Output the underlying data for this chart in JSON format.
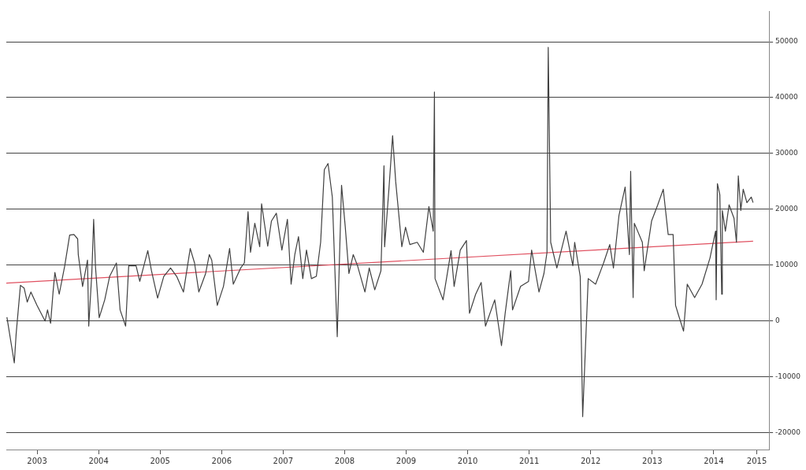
{
  "chart_data": {
    "type": "line",
    "xlim": [
      2003.0,
      2015.4
    ],
    "ylim": [
      -23000,
      55500
    ],
    "xticks": [
      {
        "value": 2003.5,
        "label": "2003"
      },
      {
        "value": 2004.5,
        "label": "2004"
      },
      {
        "value": 2005.5,
        "label": "2005"
      },
      {
        "value": 2006.5,
        "label": "2006"
      },
      {
        "value": 2007.5,
        "label": "2007"
      },
      {
        "value": 2008.5,
        "label": "2008"
      },
      {
        "value": 2009.5,
        "label": "2009"
      },
      {
        "value": 2010.5,
        "label": "2010"
      },
      {
        "value": 2011.5,
        "label": "2011"
      },
      {
        "value": 2012.5,
        "label": "2012"
      },
      {
        "value": 2013.5,
        "label": "2013"
      },
      {
        "value": 2014.5,
        "label": "2014"
      },
      {
        "value": 2015.2,
        "label": "2015"
      }
    ],
    "yticks": [
      -20000,
      -10000,
      0,
      10000,
      20000,
      30000,
      40000,
      50000
    ],
    "grid": "y",
    "legend": false,
    "marker": "none",
    "line_style": "solid",
    "series": [
      {
        "color": "#404040",
        "x": [
          2003.01,
          2003.13,
          2003.16,
          2003.23,
          2003.29,
          2003.34,
          2003.4,
          2003.5,
          2003.63,
          2003.67,
          2003.72,
          2003.76,
          2003.79,
          2003.86,
          2003.95,
          2004.03,
          2004.1,
          2004.16,
          2004.17,
          2004.24,
          2004.32,
          2004.34,
          2004.39,
          2004.42,
          2004.45,
          2004.51,
          2004.6,
          2004.68,
          2004.79,
          2004.85,
          2004.94,
          2004.99,
          2005.11,
          2005.17,
          2005.3,
          2005.36,
          2005.46,
          2005.56,
          2005.67,
          2005.77,
          2005.88,
          2005.99,
          2006.06,
          2006.13,
          2006.24,
          2006.3,
          2006.34,
          2006.43,
          2006.53,
          2006.63,
          2006.69,
          2006.81,
          2006.87,
          2006.93,
          2006.97,
          2007.04,
          2007.12,
          2007.15,
          2007.25,
          2007.31,
          2007.39,
          2007.48,
          2007.57,
          2007.63,
          2007.69,
          2007.75,
          2007.82,
          2007.88,
          2007.96,
          2008.04,
          2008.11,
          2008.17,
          2008.23,
          2008.3,
          2008.38,
          2008.45,
          2008.51,
          2008.57,
          2008.64,
          2008.71,
          2008.83,
          2008.9,
          2008.99,
          2009.09,
          2009.14,
          2009.15,
          2009.22,
          2009.28,
          2009.33,
          2009.43,
          2009.49,
          2009.56,
          2009.68,
          2009.78,
          2009.87,
          2009.94,
          2009.96,
          2009.97,
          2010.1,
          2010.23,
          2010.28,
          2010.38,
          2010.48,
          2010.53,
          2010.63,
          2010.72,
          2010.79,
          2010.94,
          2011.05,
          2011.11,
          2011.2,
          2011.23,
          2011.36,
          2011.49,
          2011.54,
          2011.66,
          2011.74,
          2011.79,
          2011.81,
          2011.85,
          2011.95,
          2012.1,
          2012.21,
          2012.24,
          2012.33,
          2012.37,
          2012.46,
          2012.58,
          2012.71,
          2012.81,
          2012.87,
          2012.96,
          2013.06,
          2013.13,
          2013.15,
          2013.19,
          2013.21,
          2013.34,
          2013.37,
          2013.49,
          2013.59,
          2013.68,
          2013.76,
          2013.84,
          2013.88,
          2013.93,
          2014.01,
          2014.07,
          2014.19,
          2014.31,
          2014.44,
          2014.53,
          2014.54,
          2014.56,
          2014.6,
          2014.63,
          2014.64,
          2014.69,
          2014.75,
          2014.83,
          2014.87,
          2014.9,
          2014.94,
          2014.98,
          2015.04,
          2015.11,
          2015.14
        ],
        "values": [
          700,
          -7500,
          -2300,
          6400,
          5900,
          3400,
          5200,
          2800,
          0,
          2000,
          -400,
          5200,
          8700,
          4800,
          9900,
          15400,
          15500,
          14700,
          11900,
          6200,
          10900,
          -900,
          8500,
          18200,
          9700,
          600,
          3800,
          8000,
          10400,
          2000,
          -900,
          9900,
          9900,
          7100,
          12600,
          9000,
          4100,
          8000,
          9500,
          8000,
          5200,
          13000,
          10400,
          5200,
          8500,
          11900,
          10900,
          2800,
          6200,
          13000,
          6600,
          9500,
          10400,
          19600,
          12300,
          17500,
          13300,
          21000,
          13400,
          17900,
          19300,
          12700,
          18200,
          6600,
          11900,
          15100,
          7600,
          12700,
          7600,
          8000,
          14100,
          27100,
          28200,
          22200,
          -2800,
          24300,
          16900,
          8500,
          11900,
          9900,
          5200,
          9500,
          5600,
          9000,
          27800,
          13300,
          23600,
          33200,
          25000,
          13300,
          16800,
          13700,
          14100,
          12300,
          20500,
          16100,
          41000,
          7600,
          3800,
          12600,
          6200,
          12700,
          14400,
          1400,
          4800,
          6900,
          -900,
          3800,
          -4400,
          1400,
          9000,
          2000,
          6200,
          7100,
          12700,
          5200,
          8500,
          12300,
          49000,
          14100,
          9500,
          16100,
          9900,
          14100,
          8000,
          -17100,
          7600,
          6600,
          10400,
          13700,
          9500,
          18900,
          24000,
          11900,
          26800,
          4200,
          17500,
          14100,
          9000,
          17900,
          20800,
          23600,
          15500,
          15500,
          2800,
          1000,
          -1800,
          6600,
          4200,
          6600,
          11300,
          16100,
          3800,
          24600,
          22600,
          4800,
          19800,
          16100,
          20800,
          18400,
          14100,
          26000,
          19800,
          23600,
          21200,
          22200,
          21200
        ]
      },
      {
        "type": "line",
        "color": "#e05060",
        "x": [
          2003.0,
          2015.14
        ],
        "values": [
          6800,
          14300
        ]
      }
    ]
  }
}
